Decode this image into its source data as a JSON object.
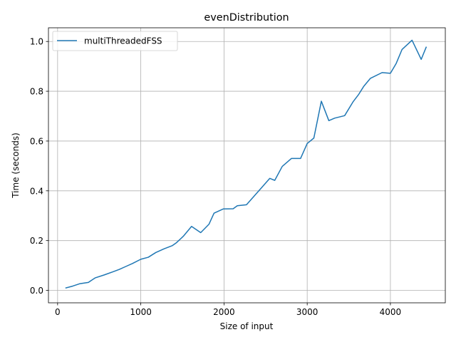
{
  "chart_data": {
    "type": "line",
    "title": "evenDistribution",
    "xlabel": "Size of input",
    "ylabel": "Time (seconds)",
    "xlim": [
      -110,
      4660
    ],
    "ylim": [
      -0.05,
      1.055
    ],
    "xticks": [
      0,
      1000,
      2000,
      3000,
      4000
    ],
    "yticks": [
      0.0,
      0.2,
      0.4,
      0.6,
      0.8,
      1.0
    ],
    "xtick_labels": [
      "0",
      "1000",
      "2000",
      "3000",
      "4000"
    ],
    "ytick_labels": [
      "0.0",
      "0.2",
      "0.4",
      "0.6",
      "0.8",
      "1.0"
    ],
    "grid": true,
    "legend_position": "upper-left",
    "series": [
      {
        "name": "multiThreadedFSS",
        "color": "#1f77b4",
        "x": [
          100,
          180,
          270,
          370,
          450,
          560,
          660,
          740,
          820,
          900,
          1000,
          1090,
          1180,
          1280,
          1380,
          1430,
          1510,
          1610,
          1720,
          1820,
          1880,
          1990,
          2110,
          2160,
          2270,
          2360,
          2450,
          2550,
          2610,
          2700,
          2810,
          2920,
          3000,
          3080,
          3170,
          3260,
          3330,
          3450,
          3550,
          3620,
          3680,
          3760,
          3900,
          4000,
          4070,
          4140,
          4260,
          4370,
          4430
        ],
        "y": [
          0.01,
          0.017,
          0.027,
          0.032,
          0.05,
          0.062,
          0.074,
          0.084,
          0.096,
          0.108,
          0.125,
          0.133,
          0.152,
          0.167,
          0.18,
          0.192,
          0.217,
          0.257,
          0.232,
          0.266,
          0.31,
          0.327,
          0.328,
          0.34,
          0.344,
          0.378,
          0.412,
          0.45,
          0.442,
          0.498,
          0.53,
          0.53,
          0.59,
          0.612,
          0.76,
          0.682,
          0.692,
          0.702,
          0.757,
          0.788,
          0.82,
          0.852,
          0.875,
          0.872,
          0.912,
          0.968,
          1.005,
          0.928,
          0.977
        ]
      }
    ]
  }
}
